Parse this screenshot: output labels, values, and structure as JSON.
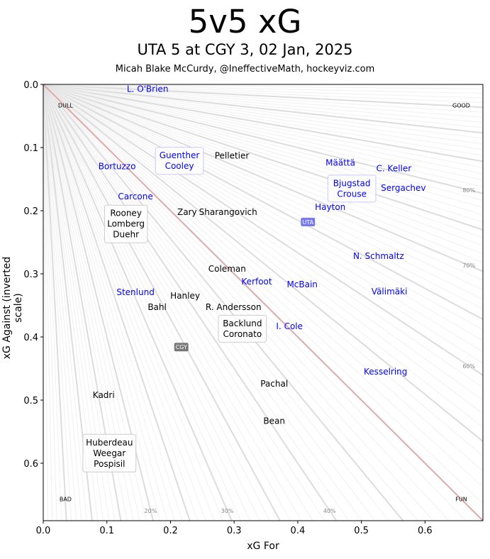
{
  "header": {
    "title": "5v5 xG",
    "subtitle": "UTA 5 at CGY 3, 02 Jan, 2025",
    "credit": "Micah Blake McCurdy, @IneffectiveMath, hockeyviz.com"
  },
  "chart_data": {
    "type": "scatter",
    "xlabel": "xG For",
    "ylabel": "xG Against (inverted scale)",
    "xlim": [
      0,
      0.691
    ],
    "ylim": [
      0,
      0.691
    ],
    "y_inverted": true,
    "xticks": [
      "0.0",
      "0.1",
      "0.2",
      "0.3",
      "0.4",
      "0.5",
      "0.6"
    ],
    "yticks": [
      "0.0",
      "0.1",
      "0.2",
      "0.3",
      "0.4",
      "0.5",
      "0.6"
    ],
    "colors": {
      "UTA": "#0000ff",
      "CGY": "#000000",
      "even_line": "#e0a8a8",
      "uta_badge": "#7878f0",
      "cgy_badge": "#787878"
    },
    "corner_labels": [
      {
        "text": "DULL",
        "x": 0.035,
        "y": 0.033
      },
      {
        "text": "GOOD",
        "x": 0.657,
        "y": 0.033
      },
      {
        "text": "BAD",
        "x": 0.035,
        "y": 0.657
      },
      {
        "text": "FUN",
        "x": 0.657,
        "y": 0.657
      }
    ],
    "percent_labels": [
      {
        "text": "20%",
        "pct": 0.2
      },
      {
        "text": "30%",
        "pct": 0.3
      },
      {
        "text": "40%",
        "pct": 0.4
      },
      {
        "text": "60%",
        "pct": 0.6
      },
      {
        "text": "70%",
        "pct": 0.7
      },
      {
        "text": "80%",
        "pct": 0.8
      }
    ],
    "teams": [
      {
        "text": "UTA",
        "x": 0.416,
        "y": 0.218
      },
      {
        "text": "CGY",
        "x": 0.217,
        "y": 0.416
      }
    ],
    "players": [
      {
        "names": [
          "L. O'Brien"
        ],
        "team": "UTA",
        "x": 0.164,
        "y": 0.004
      },
      {
        "names": [
          "Guenther",
          "Cooley"
        ],
        "team": "UTA",
        "x": 0.214,
        "y": 0.121
      },
      {
        "names": [
          "Pelletier"
        ],
        "team": "CGY",
        "x": 0.272,
        "y": 0.113
      },
      {
        "names": [
          "Bortuzzo"
        ],
        "team": "UTA",
        "x": 0.116,
        "y": 0.13
      },
      {
        "names": [
          "Rooney",
          "Lomberg",
          "Duehr"
        ],
        "team": "CGY",
        "x": 0.13,
        "y": 0.221
      },
      {
        "names": [
          "Carcone"
        ],
        "team": "UTA",
        "x": 0.145,
        "y": 0.208
      },
      {
        "names": [
          "Zary"
        ],
        "team": "CGY",
        "x": 0.226,
        "y": 0.202
      },
      {
        "names": [
          "Sharangovich"
        ],
        "team": "CGY",
        "x": 0.285,
        "y": 0.202
      },
      {
        "names": [
          "Määttä"
        ],
        "team": "UTA",
        "x": 0.467,
        "y": 0.124
      },
      {
        "names": [
          "C. Keller"
        ],
        "team": "UTA",
        "x": 0.551,
        "y": 0.133
      },
      {
        "names": [
          "Bjugstad",
          "Crouse"
        ],
        "team": "UTA",
        "x": 0.485,
        "y": 0.165
      },
      {
        "names": [
          "Sergachev"
        ],
        "team": "UTA",
        "x": 0.566,
        "y": 0.164
      },
      {
        "names": [
          "Hayton"
        ],
        "team": "UTA",
        "x": 0.46,
        "y": 0.183
      },
      {
        "names": [
          "N. Schmaltz"
        ],
        "team": "UTA",
        "x": 0.527,
        "y": 0.272
      },
      {
        "names": [
          "Coleman"
        ],
        "team": "CGY",
        "x": 0.289,
        "y": 0.292
      },
      {
        "names": [
          "Kerfoot"
        ],
        "team": "UTA",
        "x": 0.331,
        "y": 0.308
      },
      {
        "names": [
          "McBain"
        ],
        "team": "UTA",
        "x": 0.407,
        "y": 0.317
      },
      {
        "names": [
          "Välimäki"
        ],
        "team": "UTA",
        "x": 0.544,
        "y": 0.328
      },
      {
        "names": [
          "Stenlund"
        ],
        "team": "UTA",
        "x": 0.145,
        "y": 0.329
      },
      {
        "names": [
          "Hanley"
        ],
        "team": "CGY",
        "x": 0.223,
        "y": 0.335
      },
      {
        "names": [
          "Bahl"
        ],
        "team": "CGY",
        "x": 0.179,
        "y": 0.353
      },
      {
        "names": [
          "R. Andersson"
        ],
        "team": "CGY",
        "x": 0.299,
        "y": 0.353
      },
      {
        "names": [
          "Backlund",
          "Coronato"
        ],
        "team": "CGY",
        "x": 0.313,
        "y": 0.387
      },
      {
        "names": [
          "I. Cole"
        ],
        "team": "UTA",
        "x": 0.387,
        "y": 0.383
      },
      {
        "names": [
          "Kesselring"
        ],
        "team": "UTA",
        "x": 0.538,
        "y": 0.455
      },
      {
        "names": [
          "Pachal"
        ],
        "team": "CGY",
        "x": 0.363,
        "y": 0.474
      },
      {
        "names": [
          "Kadri"
        ],
        "team": "CGY",
        "x": 0.095,
        "y": 0.492
      },
      {
        "names": [
          "Bean"
        ],
        "team": "CGY",
        "x": 0.363,
        "y": 0.533
      },
      {
        "names": [
          "Huberdeau",
          "Weegar",
          "Pospisil"
        ],
        "team": "CGY",
        "x": 0.104,
        "y": 0.584
      }
    ]
  }
}
